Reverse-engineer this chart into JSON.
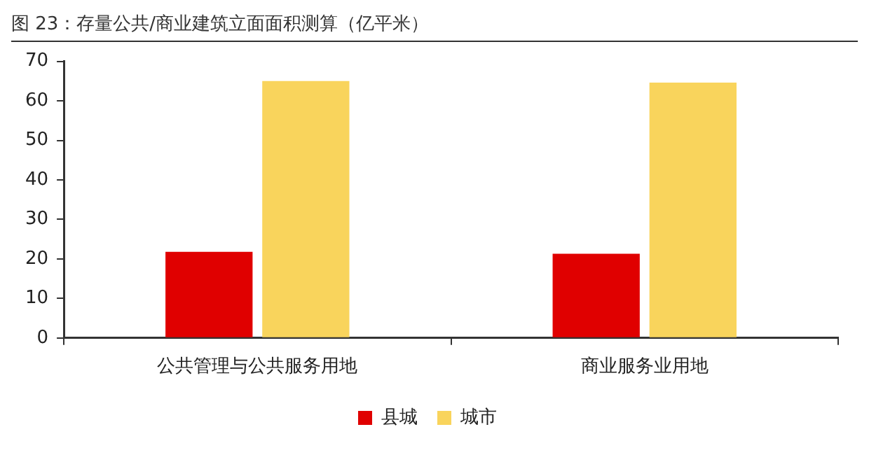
{
  "chart_data": {
    "type": "bar",
    "title": "图 23：存量公共/商业建筑立面面积测算（亿平米）",
    "categories": [
      "公共管理与公共服务用地",
      "商业服务业用地"
    ],
    "series": [
      {
        "name": "县城",
        "color": "#e00000",
        "values": [
          21.8,
          21.3
        ]
      },
      {
        "name": "城市",
        "color": "#f9d45c",
        "values": [
          65,
          64.6
        ]
      }
    ],
    "ylim": [
      0,
      70
    ],
    "yticks": [
      0,
      10,
      20,
      30,
      40,
      50,
      60,
      70
    ],
    "grid": false,
    "legend": "bottom"
  }
}
